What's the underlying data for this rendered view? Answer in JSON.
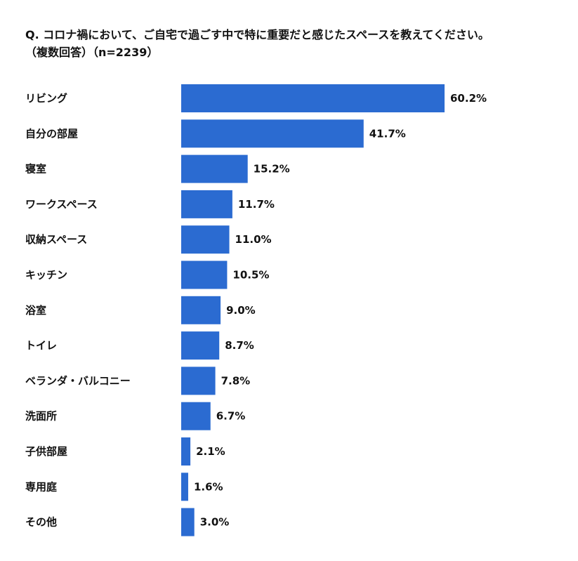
{
  "title_line1": "Q. コロナ禍において、ご自宅で過ごす中で特に重要だと感じたスペースを教えてください。",
  "title_line2": "（複数回答）（n=2239）",
  "colors": {
    "bar": "#2b6bd1",
    "text": "#111111",
    "background": "#ffffff"
  },
  "chart_data": {
    "type": "bar",
    "orientation": "horizontal",
    "title": "Q. コロナ禍において、ご自宅で過ごす中で特に重要だと感じたスペースを教えてください。（複数回答）（n=2239）",
    "categories": [
      "リビング",
      "自分の部屋",
      "寝室",
      "ワークスペース",
      "収納スペース",
      "キッチン",
      "浴室",
      "トイレ",
      "ベランダ・バルコニー",
      "洗面所",
      "子供部屋",
      "専用庭",
      "その他"
    ],
    "values": [
      60.2,
      41.7,
      15.2,
      11.7,
      11.0,
      10.5,
      9.0,
      8.7,
      7.8,
      6.7,
      2.1,
      1.6,
      3.0
    ],
    "value_labels": [
      "60.2%",
      "41.7%",
      "15.2%",
      "11.7%",
      "11.0%",
      "10.5%",
      "9.0%",
      "8.7%",
      "7.8%",
      "6.7%",
      "2.1%",
      "1.6%",
      "3.0%"
    ],
    "unit": "%",
    "xlim": [
      0,
      60.2
    ],
    "grid": false,
    "legend": "none"
  }
}
